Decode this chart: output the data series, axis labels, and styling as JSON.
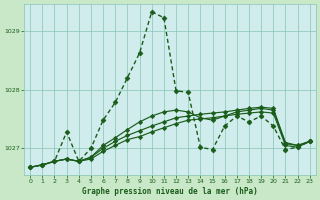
{
  "background_color": "#c8e8c8",
  "plot_bg_color": "#d0ecec",
  "grid_color": "#88c4b4",
  "line_color": "#1a5c1a",
  "xlabel": "Graphe pression niveau de la mer (hPa)",
  "ylim": [
    1026.55,
    1029.45
  ],
  "xlim": [
    -0.5,
    23.5
  ],
  "yticks": [
    1027,
    1028,
    1029
  ],
  "xticks": [
    0,
    1,
    2,
    3,
    4,
    5,
    6,
    7,
    8,
    9,
    10,
    11,
    12,
    13,
    14,
    15,
    16,
    17,
    18,
    19,
    20,
    21,
    22,
    23
  ],
  "s1_x": [
    0,
    1,
    2,
    3,
    4,
    5,
    6,
    7,
    8,
    9,
    10,
    11,
    12,
    13,
    14,
    15,
    16,
    17,
    18,
    19,
    20,
    21,
    22,
    23
  ],
  "s1_y": [
    1026.68,
    1026.72,
    1026.78,
    1026.82,
    1026.78,
    1026.82,
    1026.95,
    1027.05,
    1027.15,
    1027.2,
    1027.28,
    1027.35,
    1027.42,
    1027.48,
    1027.5,
    1027.52,
    1027.55,
    1027.58,
    1027.6,
    1027.62,
    1027.6,
    1027.05,
    1027.02,
    1027.12
  ],
  "s2_x": [
    0,
    1,
    2,
    3,
    4,
    5,
    6,
    7,
    8,
    9,
    10,
    11,
    12,
    13,
    14,
    15,
    16,
    17,
    18,
    19,
    20,
    21,
    22,
    23
  ],
  "s2_y": [
    1026.68,
    1026.72,
    1026.78,
    1026.82,
    1026.78,
    1026.85,
    1027.0,
    1027.12,
    1027.22,
    1027.3,
    1027.38,
    1027.45,
    1027.52,
    1027.55,
    1027.58,
    1027.6,
    1027.62,
    1027.65,
    1027.68,
    1027.7,
    1027.68,
    1027.1,
    1027.05,
    1027.12
  ],
  "s3_x": [
    0,
    1,
    2,
    3,
    4,
    5,
    6,
    7,
    8,
    9,
    10,
    11,
    12,
    13,
    14,
    15,
    16,
    17,
    18,
    19,
    20,
    21,
    22,
    23
  ],
  "s3_y": [
    1026.68,
    1026.72,
    1026.78,
    1026.82,
    1026.78,
    1026.85,
    1027.05,
    1027.18,
    1027.32,
    1027.45,
    1027.55,
    1027.62,
    1027.65,
    1027.62,
    1027.52,
    1027.48,
    1027.55,
    1027.62,
    1027.65,
    1027.68,
    1027.65,
    1027.08,
    1027.05,
    1027.12
  ],
  "s4_x": [
    0,
    1,
    2,
    3,
    4,
    5,
    6,
    7,
    8,
    9,
    10,
    11,
    12,
    13,
    14,
    15,
    16,
    17,
    18,
    19,
    20,
    21,
    22,
    23
  ],
  "s4_y": [
    1026.68,
    1026.72,
    1026.78,
    1027.28,
    1026.78,
    1027.0,
    1027.48,
    1027.78,
    1028.2,
    1028.62,
    1029.32,
    1029.22,
    1027.98,
    1027.95,
    1027.02,
    1026.98,
    1027.38,
    1027.55,
    1027.45,
    1027.55,
    1027.38,
    1026.98,
    1027.02,
    1027.12
  ]
}
